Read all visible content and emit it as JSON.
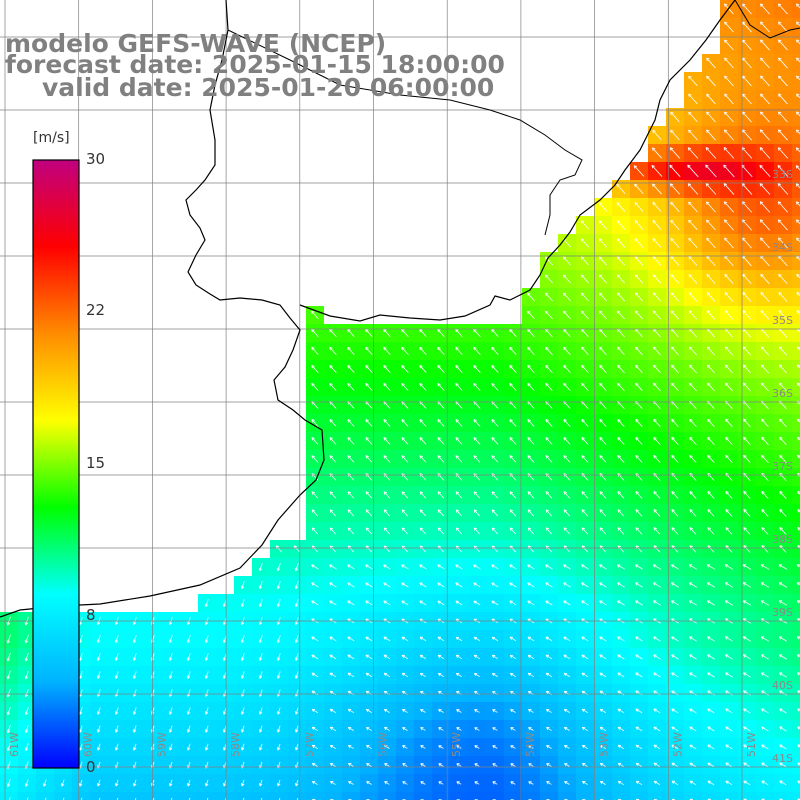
{
  "title": {
    "line1": "modelo GEFS-WAVE (NCEP)",
    "line2": "forecast date: 2025-01-15 18:00:00",
    "line3": "valid date: 2025-01-20 06:00:00"
  },
  "colorbar": {
    "unit": "[m/s]",
    "min": 0,
    "max": 30,
    "ticks": [
      "30",
      "22",
      "15",
      "8",
      "0"
    ],
    "tick_values": [
      30,
      22,
      15,
      8,
      0
    ],
    "colors": [
      "#0000ff",
      "#00b4ff",
      "#00ffff",
      "#00ff00",
      "#ffff00",
      "#ff8c00",
      "#ff0000",
      "#c00080"
    ]
  },
  "map": {
    "lat_labels": [
      "33S",
      "34S",
      "35S",
      "36S",
      "37S",
      "38S",
      "39S",
      "40S",
      "41S"
    ],
    "lon_labels": [
      "61W",
      "60W",
      "59W",
      "58W",
      "57W",
      "56W",
      "55W",
      "54W",
      "53W",
      "52W",
      "51W"
    ],
    "lon_range": [
      -61.5,
      -50.7
    ],
    "lat_range": [
      -41.4,
      -30.8
    ],
    "arrow_color": "#ffffff",
    "coast_color": "#000000",
    "grid_color": "#808080"
  }
}
